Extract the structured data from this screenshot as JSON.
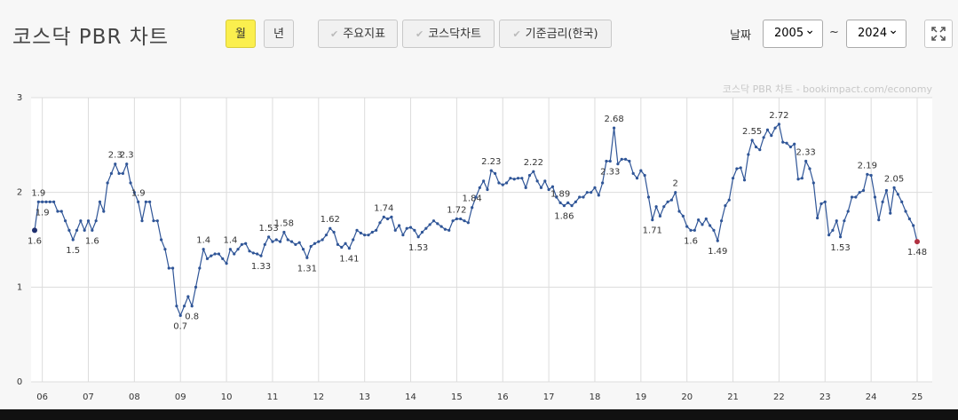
{
  "toolbar": {
    "title": "코스닥 PBR 차트",
    "period_buttons": [
      "월",
      "년"
    ],
    "toggles": [
      "주요지표",
      "코스닥차트",
      "기준금리(한국)"
    ],
    "date_label": "날짜",
    "date_from": "2005",
    "date_sep": "~",
    "date_to": "2024"
  },
  "chart_data": {
    "type": "line",
    "watermark": "코스닥 PBR 차트 - bookimpact.com/economy",
    "categories": [
      null,
      null,
      "06",
      null,
      null,
      null,
      null,
      null,
      null,
      null,
      null,
      null,
      null,
      null,
      "07",
      null,
      null,
      null,
      null,
      null,
      null,
      null,
      null,
      null,
      null,
      null,
      "08",
      null,
      null,
      null,
      null,
      null,
      null,
      null,
      null,
      null,
      null,
      null,
      "09",
      null,
      null,
      null,
      null,
      null,
      null,
      null,
      null,
      null,
      null,
      null,
      "10",
      null,
      null,
      null,
      null,
      null,
      null,
      null,
      null,
      null,
      null,
      null,
      "11",
      null,
      null,
      null,
      null,
      null,
      null,
      null,
      null,
      null,
      null,
      null,
      "12",
      null,
      null,
      null,
      null,
      null,
      null,
      null,
      null,
      null,
      null,
      null,
      "13",
      null,
      null,
      null,
      null,
      null,
      null,
      null,
      null,
      null,
      null,
      null,
      "14",
      null,
      null,
      null,
      null,
      null,
      null,
      null,
      null,
      null,
      null,
      null,
      "15",
      null,
      null,
      null,
      null,
      null,
      null,
      null,
      null,
      null,
      null,
      null,
      "16",
      null,
      null,
      null,
      null,
      null,
      null,
      null,
      null,
      null,
      null,
      null,
      "17",
      null,
      null,
      null,
      null,
      null,
      null,
      null,
      null,
      null,
      null,
      null,
      "18",
      null,
      null,
      null,
      null,
      null,
      null,
      null,
      null,
      null,
      null,
      null,
      "19",
      null,
      null,
      null,
      null,
      null,
      null,
      null,
      null,
      null,
      null,
      null,
      "20",
      null,
      null,
      null,
      null,
      null,
      null,
      null,
      null,
      null,
      null,
      null,
      "21",
      null,
      null,
      null,
      null,
      null,
      null,
      null,
      null,
      null,
      null,
      null,
      "22",
      null,
      null,
      null,
      null,
      null,
      null,
      null,
      null,
      null,
      null,
      null,
      "23",
      null,
      null,
      null,
      null,
      null,
      null,
      null,
      null,
      null,
      null,
      null,
      "24",
      null,
      null,
      null,
      null,
      null,
      null,
      null,
      null,
      null,
      null,
      null,
      "25"
    ],
    "values": [
      1.6,
      1.9,
      1.9,
      1.9,
      1.9,
      1.9,
      1.8,
      1.8,
      1.7,
      1.6,
      1.5,
      1.6,
      1.7,
      1.6,
      1.7,
      1.6,
      1.7,
      1.9,
      1.8,
      2.1,
      2.2,
      2.3,
      2.2,
      2.2,
      2.3,
      2.1,
      2.0,
      1.9,
      1.7,
      1.9,
      1.9,
      1.7,
      1.7,
      1.5,
      1.4,
      1.2,
      1.2,
      0.8,
      0.7,
      0.8,
      0.9,
      0.8,
      1.0,
      1.2,
      1.4,
      1.3,
      1.33,
      1.35,
      1.35,
      1.3,
      1.25,
      1.4,
      1.35,
      1.4,
      1.45,
      1.46,
      1.38,
      1.36,
      1.35,
      1.33,
      1.45,
      1.53,
      1.48,
      1.5,
      1.48,
      1.58,
      1.5,
      1.48,
      1.45,
      1.47,
      1.4,
      1.31,
      1.43,
      1.46,
      1.48,
      1.5,
      1.55,
      1.62,
      1.58,
      1.45,
      1.42,
      1.46,
      1.41,
      1.5,
      1.6,
      1.57,
      1.55,
      1.55,
      1.58,
      1.6,
      1.68,
      1.74,
      1.72,
      1.74,
      1.6,
      1.65,
      1.55,
      1.62,
      1.63,
      1.6,
      1.53,
      1.58,
      1.62,
      1.66,
      1.7,
      1.67,
      1.64,
      1.61,
      1.6,
      1.7,
      1.72,
      1.72,
      1.7,
      1.68,
      1.84,
      1.95,
      2.05,
      2.12,
      2.03,
      2.23,
      2.2,
      2.1,
      2.08,
      2.1,
      2.15,
      2.14,
      2.15,
      2.15,
      2.05,
      2.18,
      2.22,
      2.12,
      2.05,
      2.12,
      2.03,
      2.06,
      1.95,
      1.89,
      1.86,
      1.89,
      1.86,
      1.9,
      1.95,
      1.95,
      2.0,
      2.0,
      2.05,
      1.97,
      2.1,
      2.33,
      2.33,
      2.68,
      2.3,
      2.35,
      2.35,
      2.33,
      2.2,
      2.15,
      2.23,
      2.18,
      1.95,
      1.71,
      1.85,
      1.75,
      1.85,
      1.9,
      1.92,
      2.0,
      1.8,
      1.75,
      1.64,
      1.6,
      1.6,
      1.71,
      1.66,
      1.72,
      1.65,
      1.6,
      1.49,
      1.7,
      1.86,
      1.92,
      2.15,
      2.25,
      2.26,
      2.13,
      2.4,
      2.55,
      2.48,
      2.45,
      2.58,
      2.66,
      2.6,
      2.68,
      2.72,
      2.53,
      2.52,
      2.48,
      2.51,
      2.14,
      2.15,
      2.33,
      2.25,
      2.1,
      1.73,
      1.88,
      1.9,
      1.55,
      1.6,
      1.7,
      1.53,
      1.7,
      1.8,
      1.95,
      1.95,
      2.0,
      2.02,
      2.19,
      2.18,
      1.95,
      1.71,
      1.9,
      2.02,
      1.78,
      2.05,
      1.98,
      1.9,
      1.8,
      1.72,
      1.65,
      1.48
    ],
    "value_labels": [
      "1.6",
      "1.9",
      "1.9",
      null,
      null,
      null,
      null,
      null,
      null,
      null,
      "1.5",
      null,
      null,
      null,
      null,
      "1.6",
      null,
      null,
      null,
      null,
      null,
      "2.3",
      null,
      null,
      "2.3",
      null,
      null,
      "1.9",
      null,
      null,
      null,
      null,
      null,
      null,
      null,
      null,
      null,
      null,
      "0.7",
      null,
      null,
      "0.8",
      null,
      null,
      "1.4",
      null,
      null,
      null,
      null,
      null,
      null,
      "1.4",
      null,
      null,
      null,
      null,
      null,
      null,
      null,
      "1.33",
      null,
      "1.53",
      null,
      null,
      null,
      "1.58",
      null,
      null,
      null,
      null,
      null,
      "1.31",
      null,
      null,
      null,
      null,
      null,
      "1.62",
      null,
      null,
      null,
      null,
      "1.41",
      null,
      null,
      null,
      null,
      null,
      null,
      null,
      null,
      "1.74",
      null,
      null,
      null,
      null,
      null,
      null,
      null,
      null,
      "1.53",
      null,
      null,
      null,
      null,
      null,
      null,
      null,
      null,
      null,
      "1.72",
      null,
      null,
      null,
      "1.84",
      null,
      null,
      null,
      null,
      "2.23",
      null,
      null,
      null,
      null,
      null,
      null,
      null,
      null,
      null,
      null,
      "2.22",
      null,
      null,
      null,
      null,
      null,
      null,
      "1.89",
      "1.86",
      null,
      null,
      null,
      null,
      null,
      null,
      null,
      null,
      null,
      null,
      null,
      "2.33",
      "2.68",
      null,
      null,
      null,
      null,
      null,
      null,
      null,
      null,
      null,
      "1.71",
      null,
      null,
      null,
      null,
      null,
      "2",
      null,
      null,
      null,
      "1.6",
      null,
      null,
      null,
      null,
      null,
      null,
      "1.49",
      null,
      null,
      null,
      null,
      null,
      null,
      null,
      null,
      "2.55",
      null,
      null,
      null,
      null,
      null,
      null,
      "2.72",
      null,
      null,
      null,
      null,
      null,
      null,
      "2.33",
      null,
      null,
      null,
      null,
      null,
      null,
      null,
      null,
      "1.53",
      null,
      null,
      null,
      null,
      null,
      null,
      "2.19",
      null,
      null,
      null,
      null,
      null,
      null,
      "2.05",
      null,
      null,
      null,
      null,
      null,
      "1.48"
    ],
    "color": "#2f5597",
    "ylim": [
      0,
      3
    ],
    "yticks": [
      0,
      1,
      2,
      3
    ],
    "grid": true
  }
}
